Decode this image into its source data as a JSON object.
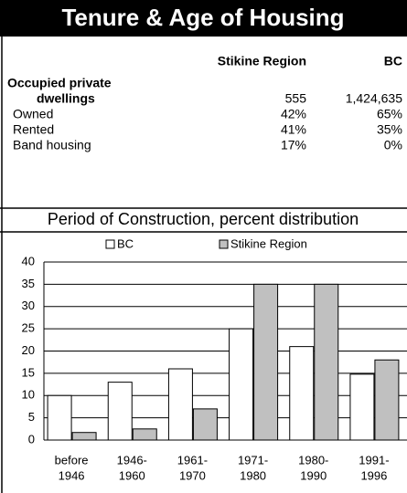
{
  "table": {
    "title": "Tenure & Age of Housing",
    "columns": [
      "Stikine Region",
      "BC"
    ],
    "rows": [
      {
        "label": [
          "Occupied private",
          "dwellings"
        ],
        "values": [
          "555",
          "1,424,635"
        ]
      },
      {
        "label": [
          "Owned"
        ],
        "values": [
          "42%",
          "65%"
        ]
      },
      {
        "label": [
          "Rented"
        ],
        "values": [
          "41%",
          "35%"
        ]
      },
      {
        "label": [
          "Band housing"
        ],
        "values": [
          "17%",
          "0%"
        ]
      }
    ]
  },
  "chart_data": {
    "type": "bar",
    "title": "Period of Construction, percent distribution",
    "categories": [
      [
        "before",
        "1946"
      ],
      [
        "1946-",
        "1960"
      ],
      [
        "1961-",
        "1970"
      ],
      [
        "1971-",
        "1980"
      ],
      [
        "1980-",
        "1990"
      ],
      [
        "1991-",
        "1996"
      ]
    ],
    "series": [
      {
        "name": "BC",
        "color": "#ffffff",
        "values": [
          10,
          13,
          16,
          25,
          21,
          14.8
        ]
      },
      {
        "name": "Stikine Region",
        "color": "#c0c0c0",
        "values": [
          1.7,
          2.5,
          7,
          35,
          35,
          18
        ]
      }
    ],
    "ylim": [
      0,
      40
    ],
    "yticks": [
      0,
      5,
      10,
      15,
      20,
      25,
      30,
      35,
      40
    ],
    "grid": true
  }
}
